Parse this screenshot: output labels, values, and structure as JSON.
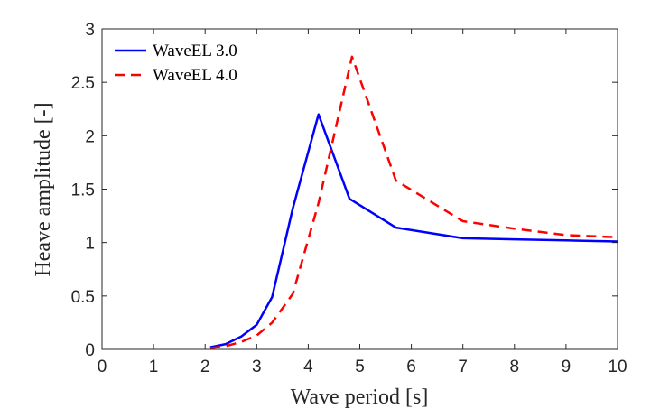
{
  "chart_data": {
    "type": "line",
    "xlabel": "Wave period [s]",
    "ylabel": "Heave amplitude [-]",
    "xlim": [
      0,
      10
    ],
    "ylim": [
      0,
      3
    ],
    "xticks": [
      "0",
      "1",
      "2",
      "3",
      "4",
      "5",
      "6",
      "7",
      "8",
      "9",
      "10"
    ],
    "yticks": [
      "0",
      "0.5",
      "1",
      "1.5",
      "2",
      "2.5",
      "3"
    ],
    "grid": false,
    "legend_position": "top-left",
    "series": [
      {
        "name": "WaveEL 3.0",
        "color": "#0000ff",
        "style": "solid",
        "x": [
          2.1,
          2.4,
          2.7,
          3.0,
          3.3,
          3.7,
          4.2,
          4.8,
          5.7,
          7.0,
          8.0,
          9.0,
          10.0
        ],
        "y": [
          0.02,
          0.05,
          0.12,
          0.23,
          0.49,
          1.32,
          2.2,
          1.41,
          1.14,
          1.04,
          1.03,
          1.02,
          1.01
        ]
      },
      {
        "name": "WaveEL 4.0",
        "color": "#ff0000",
        "style": "dashed",
        "x": [
          2.1,
          2.4,
          2.7,
          3.0,
          3.3,
          3.7,
          4.2,
          4.85,
          5.7,
          7.0,
          8.0,
          9.0,
          10.0
        ],
        "y": [
          0.01,
          0.03,
          0.07,
          0.13,
          0.25,
          0.52,
          1.37,
          2.74,
          1.58,
          1.2,
          1.13,
          1.07,
          1.05
        ]
      }
    ]
  }
}
